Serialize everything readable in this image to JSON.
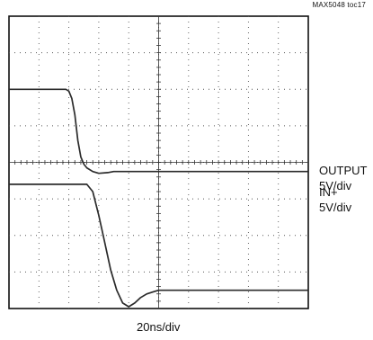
{
  "doc_id": "MAX5048 toc17",
  "chart_data": {
    "type": "line",
    "title": "",
    "xlabel": "20ns/div",
    "ylabel": "",
    "grid": true,
    "x_divisions": 10,
    "y_divisions": 8,
    "x_unit": "ns",
    "x_per_div": 20,
    "xlim": [
      0,
      200
    ],
    "series": [
      {
        "name": "IN+",
        "scale": "5V/div",
        "reference_div": 2.8,
        "x_ns": [
          0,
          38,
          40,
          42,
          44,
          46,
          48,
          50,
          52,
          56,
          60,
          66,
          70,
          80,
          200
        ],
        "y_div": [
          6.0,
          6.0,
          5.95,
          5.75,
          5.3,
          4.6,
          4.15,
          3.95,
          3.85,
          3.75,
          3.7,
          3.72,
          3.75,
          3.75,
          3.75
        ]
      },
      {
        "name": "OUTPUT",
        "scale": "5V/div",
        "reference_div": 3.4,
        "x_ns": [
          0,
          52,
          56,
          60,
          64,
          68,
          72,
          76,
          80,
          84,
          88,
          92,
          96,
          100,
          104,
          110,
          120,
          200
        ],
        "y_div": [
          3.4,
          3.4,
          3.2,
          2.55,
          1.8,
          1.05,
          0.5,
          0.15,
          0.05,
          0.15,
          0.3,
          0.4,
          0.45,
          0.5,
          0.5,
          0.5,
          0.5,
          0.5
        ]
      }
    ]
  }
}
